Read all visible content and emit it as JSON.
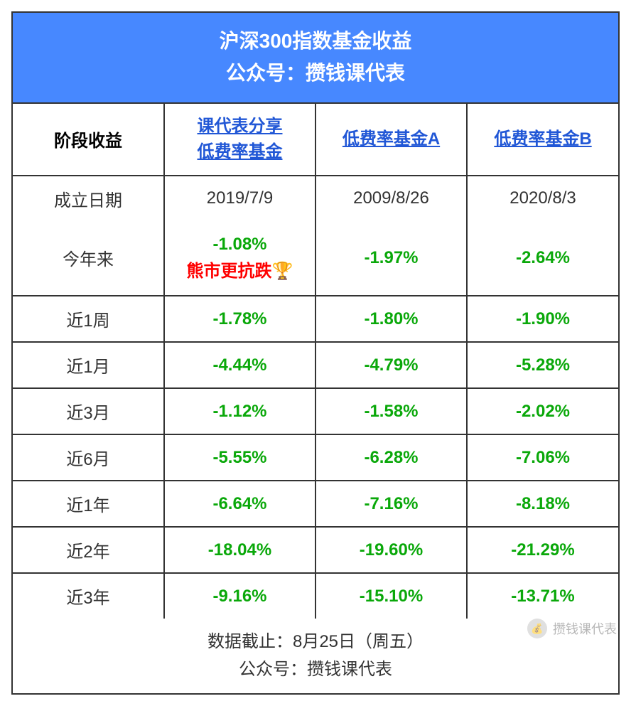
{
  "header": {
    "title_line1": "沪深300指数基金收益",
    "title_line2": "公众号：攒钱课代表"
  },
  "columns": {
    "label": "阶段收益",
    "col1_line1": "课代表分享",
    "col1_line2": "低费率基金",
    "col2": "低费率基金A",
    "col3": "低费率基金B"
  },
  "dates": {
    "label": "成立日期",
    "col1": "2019/7/9",
    "col2": "2009/8/26",
    "col3": "2020/8/3"
  },
  "rows": [
    {
      "label": "今年来",
      "col1": "-1.08%",
      "col1_highlight": "熊市更抗跌🏆",
      "col2": "-1.97%",
      "col3": "-2.64%"
    },
    {
      "label": "近1周",
      "col1": "-1.78%",
      "col2": "-1.80%",
      "col3": "-1.90%"
    },
    {
      "label": "近1月",
      "col1": "-4.44%",
      "col2": "-4.79%",
      "col3": "-5.28%"
    },
    {
      "label": "近3月",
      "col1": "-1.12%",
      "col2": "-1.58%",
      "col3": "-2.02%"
    },
    {
      "label": "近6月",
      "col1": "-5.55%",
      "col2": "-6.28%",
      "col3": "-7.06%"
    },
    {
      "label": "近1年",
      "col1": "-6.64%",
      "col2": "-7.16%",
      "col3": "-8.18%"
    },
    {
      "label": "近2年",
      "col1": "-18.04%",
      "col2": "-19.60%",
      "col3": "-21.29%"
    },
    {
      "label": "近3年",
      "col1": "-9.16%",
      "col2": "-15.10%",
      "col3": "-13.71%"
    }
  ],
  "footer": {
    "line1": "数据截止：8月25日（周五）",
    "line2": "公众号：攒钱课代表"
  },
  "watermark": {
    "text": "攒钱课代表"
  },
  "styling": {
    "header_bg": "#4788ff",
    "header_text": "#ffffff",
    "border_color": "#333333",
    "link_color": "#2157d6",
    "value_green": "#0aa80a",
    "highlight_red": "#ff0000",
    "text_color": "#333333",
    "background": "#ffffff",
    "header_fontsize": 28,
    "cell_fontsize": 24
  }
}
